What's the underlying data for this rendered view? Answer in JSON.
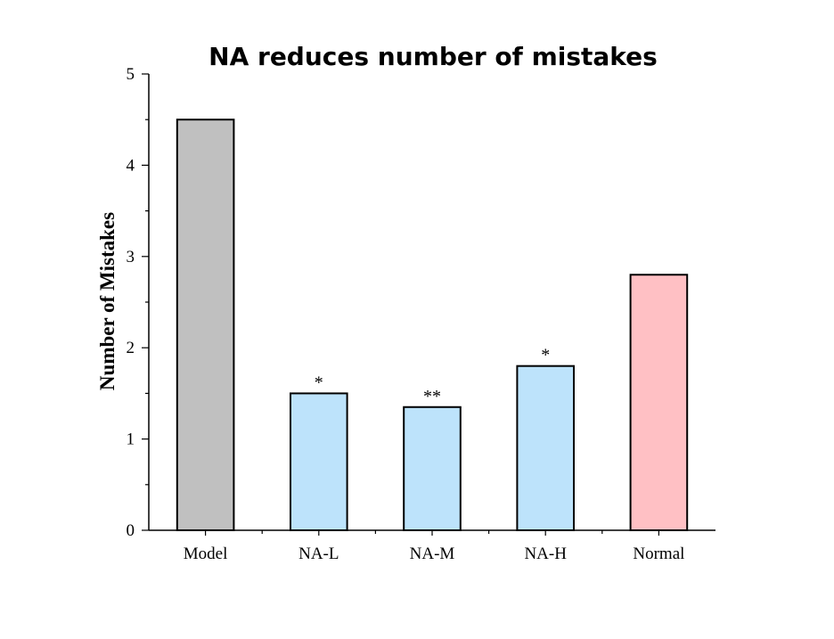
{
  "chart_data": {
    "type": "bar",
    "title": "NA reduces number of mistakes",
    "xlabel": "",
    "ylabel": "Number of Mistakes",
    "ylim": [
      0,
      5
    ],
    "yticks": [
      0,
      1,
      2,
      3,
      4,
      5
    ],
    "yminor_ticks": true,
    "grid": false,
    "legend": "none",
    "categories": [
      "Model",
      "NA-L",
      "NA-M",
      "NA-H",
      "Normal"
    ],
    "values": [
      4.5,
      1.5,
      1.35,
      1.8,
      2.8
    ],
    "annotations": [
      "",
      "*",
      "**",
      "*",
      ""
    ],
    "bar_colors": [
      "#c0c0c0",
      "#bde3fb",
      "#bde3fb",
      "#bde3fb",
      "#ffc0c4"
    ]
  }
}
